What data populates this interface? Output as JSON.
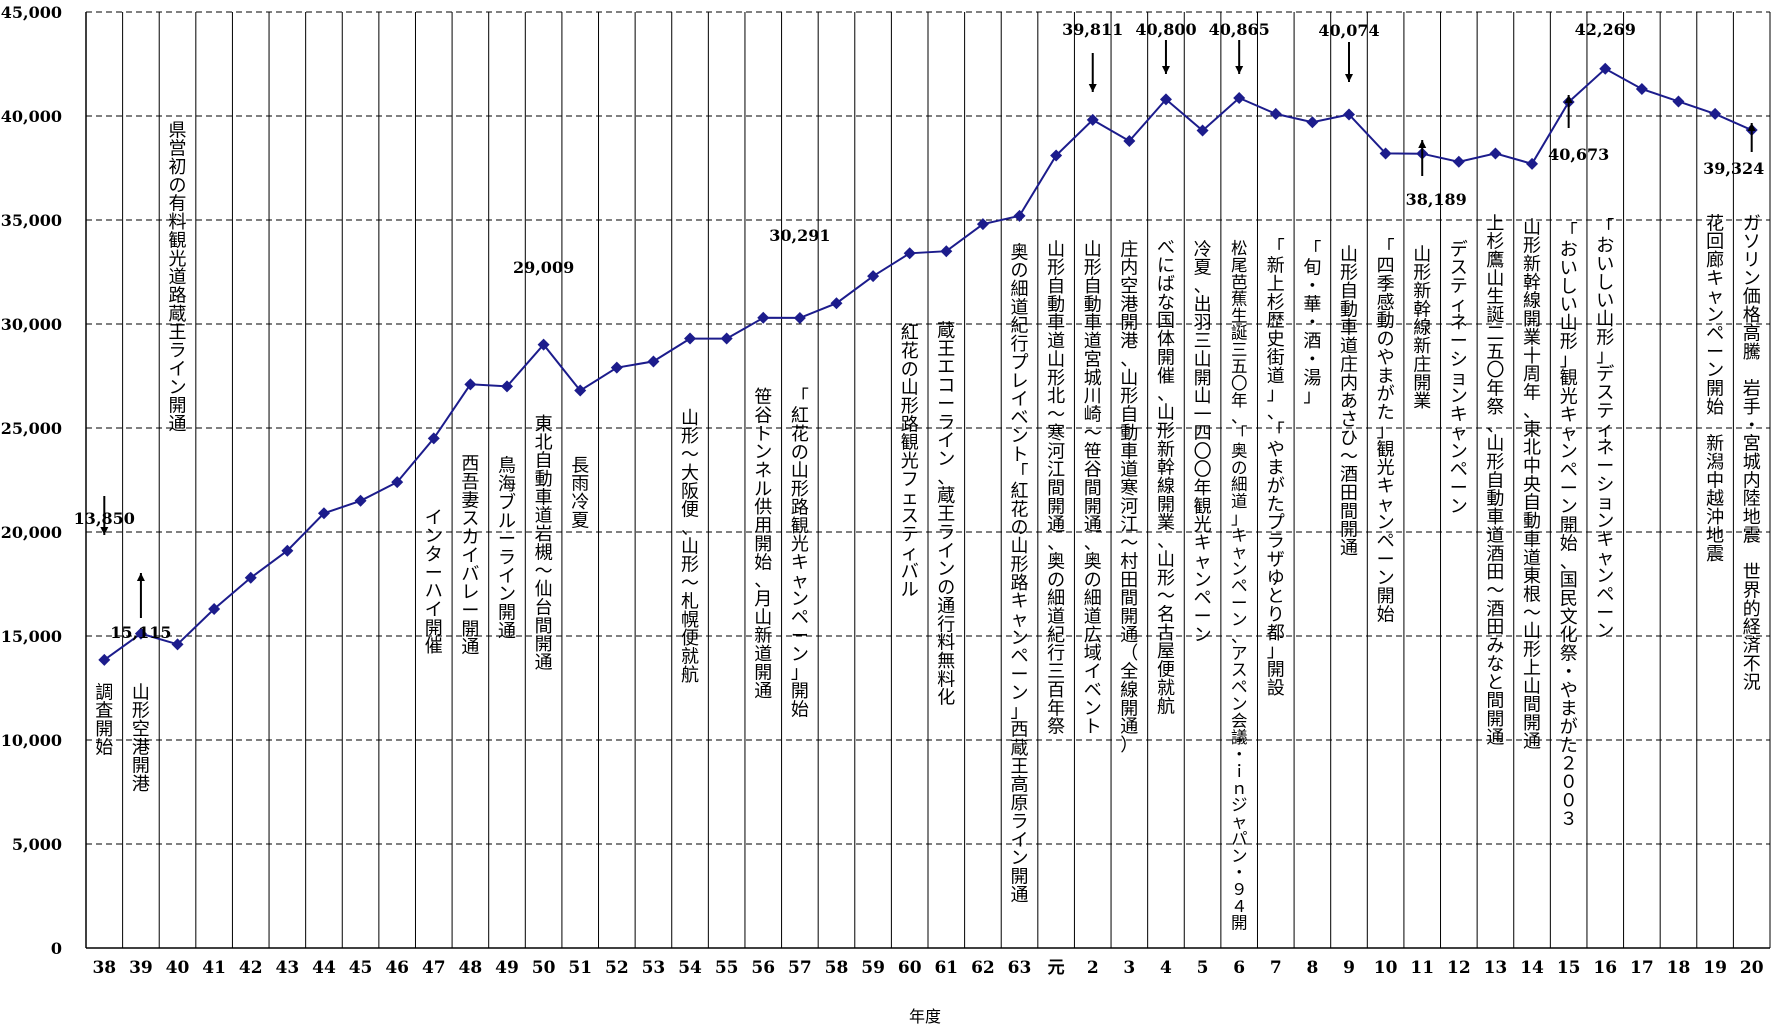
{
  "chart_data": {
    "type": "line",
    "xlabel": "年度",
    "ylim": [
      0,
      45000
    ],
    "yticks": [
      "0",
      "5,000",
      "10,000",
      "15,000",
      "20,000",
      "25,000",
      "30,000",
      "35,000",
      "40,000",
      "45,000"
    ],
    "grid": "horizontal dashed + vertical solid",
    "x": [
      "38",
      "39",
      "40",
      "41",
      "42",
      "43",
      "44",
      "45",
      "46",
      "47",
      "48",
      "49",
      "50",
      "51",
      "52",
      "53",
      "54",
      "55",
      "56",
      "57",
      "58",
      "59",
      "60",
      "61",
      "62",
      "63",
      "元",
      "2",
      "3",
      "4",
      "5",
      "6",
      "7",
      "8",
      "9",
      "10",
      "11",
      "12",
      "13",
      "14",
      "15",
      "16",
      "17",
      "18",
      "19",
      "20"
    ],
    "series": [
      {
        "values": [
          13850,
          15115,
          14600,
          16300,
          17800,
          19100,
          20900,
          21500,
          22400,
          24500,
          27100,
          27000,
          29009,
          26800,
          27900,
          28200,
          29300,
          29300,
          30300,
          30291,
          31000,
          32300,
          33400,
          33500,
          34800,
          35200,
          38100,
          39811,
          38800,
          40800,
          39300,
          40865,
          40100,
          39700,
          40074,
          38200,
          38189,
          37800,
          38200,
          37700,
          40673,
          42269,
          41300,
          40700,
          40100,
          39324
        ],
        "color": "#1c1c8c"
      }
    ],
    "data_labels": [
      {
        "i": 0,
        "text": "13,850",
        "arrow": "down"
      },
      {
        "i": 1,
        "text": "15,115",
        "arrow": "up"
      },
      {
        "i": 12,
        "text": "29,009",
        "arrow": "none"
      },
      {
        "i": 19,
        "text": "30,291",
        "arrow": "none"
      },
      {
        "i": 27,
        "text": "39,811",
        "arrow": "down"
      },
      {
        "i": 29,
        "text": "40,800",
        "arrow": "down"
      },
      {
        "i": 31,
        "text": "40,865",
        "arrow": "down"
      },
      {
        "i": 34,
        "text": "40,074",
        "arrow": "down"
      },
      {
        "i": 36,
        "text": "38,189",
        "arrow": "up"
      },
      {
        "i": 40,
        "text": "40,673",
        "arrow": "up"
      },
      {
        "i": 41,
        "text": "42,269",
        "arrow": "none"
      },
      {
        "i": 45,
        "text": "39,324",
        "arrow": "up"
      }
    ],
    "annotations": [
      {
        "i": 0,
        "text": "調査開始"
      },
      {
        "i": 1,
        "text": "山形空港開港"
      },
      {
        "i": 2,
        "text": "県営初の有料観光道路蔵王ライン開通"
      },
      {
        "i": 9,
        "text": "インターハイ開催"
      },
      {
        "i": 10,
        "text": "西吾妻スカイバレー開通"
      },
      {
        "i": 11,
        "text": "鳥海ブルーライン開通"
      },
      {
        "i": 12,
        "text": "東北自動車道岩槻～仙台間開通"
      },
      {
        "i": 13,
        "text": "長雨冷夏"
      },
      {
        "i": 16,
        "text": "山形～大阪便、山形～札幌便就航"
      },
      {
        "i": 18,
        "text": "笹谷トンネル供用開始、月山新道開通"
      },
      {
        "i": 19,
        "text": "「紅花の山形路観光キャンペーン」開始"
      },
      {
        "i": 22,
        "text": "紅花の山形路観光フェスティバル"
      },
      {
        "i": 23,
        "text": "蔵王エコーライン、蔵王ラインの通行料無料化"
      },
      {
        "i": 25,
        "text": "奥の細道紀行プレイベント「紅花の山形路キャンペーン」西蔵王高原ライン開通"
      },
      {
        "i": 26,
        "text": "山形自動車道山形北～寒河江間開通、奥の細道紀行三百年祭"
      },
      {
        "i": 27,
        "text": "山形自動車道宮城川崎～笹谷間開通、奥の細道広域イベント"
      },
      {
        "i": 28,
        "text": "庄内空港開港、山形自動車道寒河江～村田間開通（全線開通）"
      },
      {
        "i": 29,
        "text": "べにばな国体開催、山形新幹線開業、山形～名古屋便就航"
      },
      {
        "i": 30,
        "text": "冷夏、出羽三山開山一四〇〇年観光キャンペーン"
      },
      {
        "i": 31,
        "text": "松尾芭蕉生誕三五〇年、「奥の細道」キャンペーン、アスペン会議・ｉｎジャパン・９４開"
      },
      {
        "i": 32,
        "text": "「新上杉歴史街道」、「やまがたプラザゆとり都」開設"
      },
      {
        "i": 33,
        "text": "「旬・華・酒・湯」"
      },
      {
        "i": 34,
        "text": "山形自動車道庄内あさひ～酒田間開通"
      },
      {
        "i": 35,
        "text": "「四季感動のやまがた」観光キャンペーン開始"
      },
      {
        "i": 36,
        "text": "山形新幹線新庄開業"
      },
      {
        "i": 37,
        "text": "デスティネーションキャンペーン"
      },
      {
        "i": 38,
        "text": "上杉鷹山生誕二五〇年祭、山形自動車道酒田～酒田みなと間開通"
      },
      {
        "i": 39,
        "text": "山形新幹線開業十周年、東北中央自動車道東根～山形上山間開通"
      },
      {
        "i": 40,
        "text": "「おいしい山形」観光キャンペーン開始、国民文化祭・やまがた２００３"
      },
      {
        "i": 41,
        "text": "「おいしい山形」デスティネーションキャンペーン"
      },
      {
        "i": 44,
        "text": "花回廊キャンペーン開始　新潟中越沖地震"
      },
      {
        "i": 45,
        "text": "ガソリン価格高騰　岩手・宮城内陸地震　世界的経済不況"
      }
    ]
  }
}
